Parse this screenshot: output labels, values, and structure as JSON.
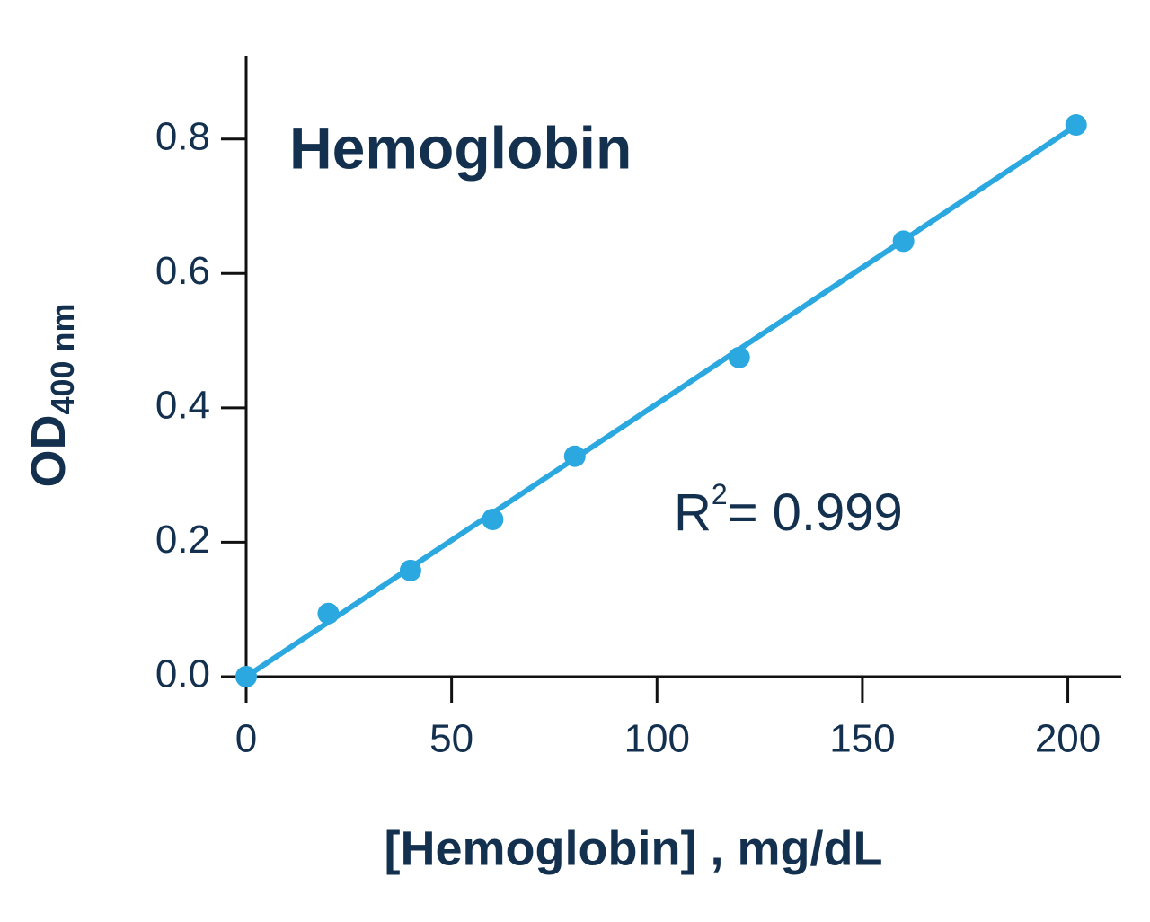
{
  "chart_data": {
    "type": "scatter",
    "title": "Hemoglobin",
    "x_label": "[Hemoglobin] , mg/dL",
    "y_label": {
      "base": "OD",
      "subscript": "400 nm"
    },
    "annotation": {
      "base": "R",
      "superscript": "2",
      "rest": "= 0.999"
    },
    "x": [
      0,
      20,
      40,
      60,
      80,
      120,
      160,
      202
    ],
    "values": [
      0,
      0.094,
      0.158,
      0.234,
      0.328,
      0.475,
      0.648,
      0.821
    ],
    "color": "#2aa8df",
    "fit_line": {
      "x": [
        0,
        202
      ],
      "values": [
        0,
        0.82
      ]
    },
    "xlim": [
      0,
      213
    ],
    "ylim": [
      0,
      0.924
    ],
    "xticks": [
      0,
      50,
      100,
      150,
      200
    ],
    "yticks": [
      {
        "value": 0,
        "label": "0.0"
      },
      0.2,
      0.4,
      0.6,
      0.8
    ]
  }
}
